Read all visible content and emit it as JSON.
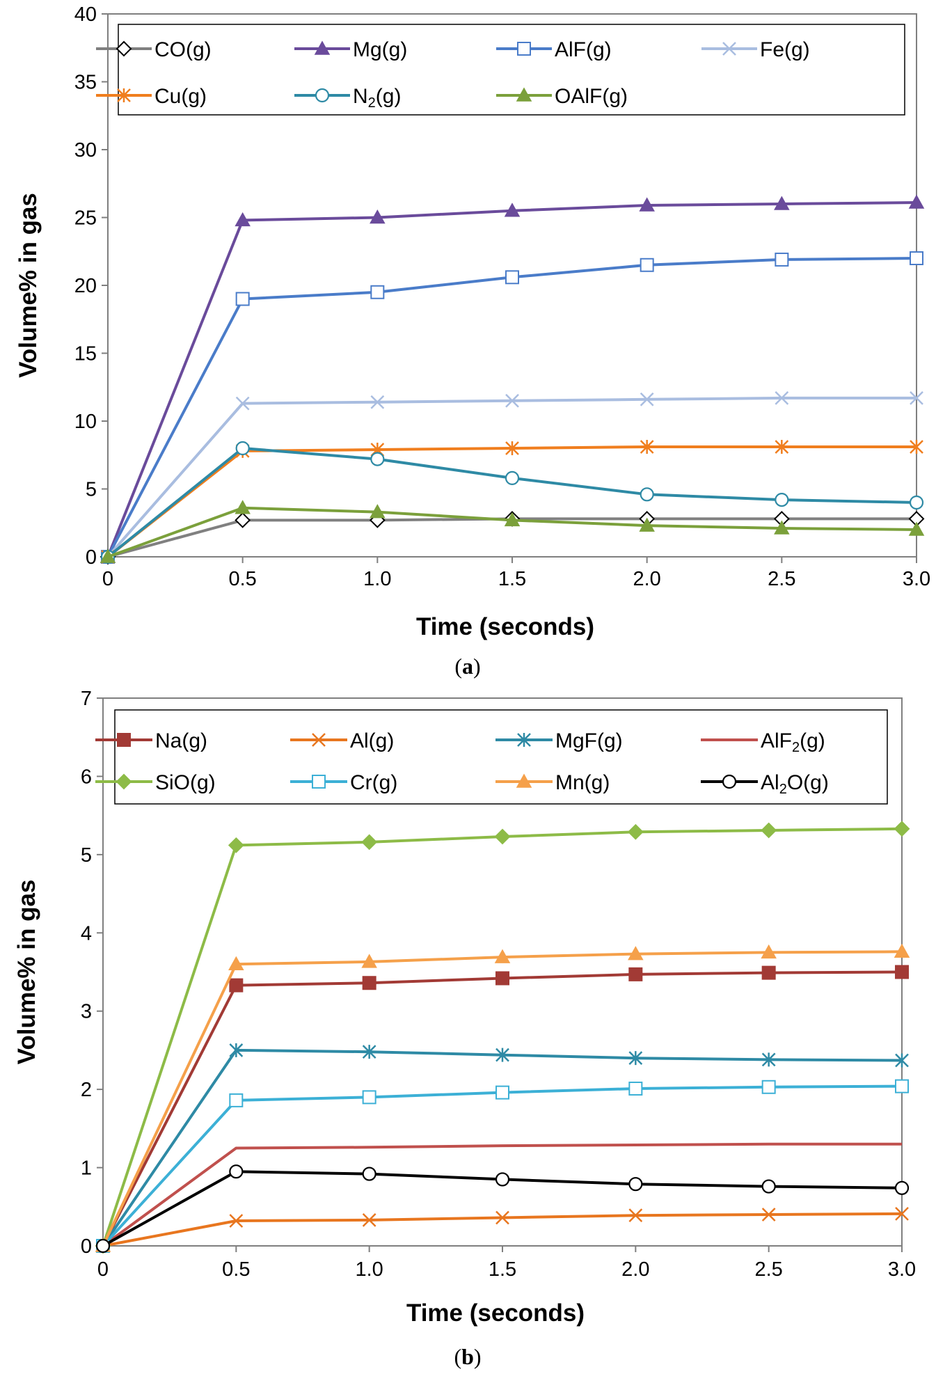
{
  "chart_data": [
    {
      "type": "line",
      "panel_label": "(a)",
      "title": "",
      "xlabel": "Time (seconds)",
      "ylabel": "Volume% in gas",
      "xlim": [
        0,
        3
      ],
      "ylim": [
        0,
        40
      ],
      "x_ticks": [
        0,
        0.5,
        1,
        1.5,
        2,
        2.5,
        3
      ],
      "x_tick_labels": [
        "0",
        "0.5",
        "1.0",
        "1.5",
        "2.0",
        "2.5",
        "3.0"
      ],
      "y_ticks": [
        0,
        5,
        10,
        15,
        20,
        25,
        30,
        35,
        40
      ],
      "y_tick_labels": [
        "0",
        "5",
        "10",
        "15",
        "20",
        "25",
        "30",
        "35",
        "40"
      ],
      "grid": false,
      "legend_position": "top",
      "x": [
        0,
        0.5,
        1,
        1.5,
        2,
        2.5,
        3
      ],
      "series": [
        {
          "name": "CO(g)",
          "label_base": "CO(g)",
          "label_sub": "",
          "label_tail": "",
          "color": "#808080",
          "marker": "diamond-open",
          "values": [
            0,
            2.7,
            2.7,
            2.8,
            2.8,
            2.8,
            2.8
          ]
        },
        {
          "name": "Mg(g)",
          "label_base": "Mg(g)",
          "label_sub": "",
          "label_tail": "",
          "color": "#6a4b9b",
          "marker": "triangle",
          "values": [
            0,
            24.8,
            25.0,
            25.5,
            25.9,
            26.0,
            26.1
          ]
        },
        {
          "name": "AlF(g)",
          "label_base": "AlF(g)",
          "label_sub": "",
          "label_tail": "",
          "color": "#4a7cc9",
          "marker": "square-open",
          "values": [
            0,
            19.0,
            19.5,
            20.6,
            21.5,
            21.9,
            22.0
          ]
        },
        {
          "name": "Fe(g)",
          "label_base": "Fe(g)",
          "label_sub": "",
          "label_tail": "",
          "color": "#a9bde0",
          "marker": "x",
          "values": [
            0,
            11.3,
            11.4,
            11.5,
            11.6,
            11.7,
            11.7
          ]
        },
        {
          "name": "Cu(g)",
          "label_base": "Cu(g)",
          "label_sub": "",
          "label_tail": "",
          "color": "#f07e1e",
          "marker": "star",
          "values": [
            0,
            7.8,
            7.9,
            8.0,
            8.1,
            8.1,
            8.1
          ]
        },
        {
          "name": "N2(g)",
          "label_base": "N",
          "label_sub": "2",
          "label_tail": "(g)",
          "color": "#2e8aa5",
          "marker": "circle-open",
          "values": [
            0,
            8.0,
            7.2,
            5.8,
            4.6,
            4.2,
            4.0
          ]
        },
        {
          "name": "OAlF(g)",
          "label_base": "OAlF(g)",
          "label_sub": "",
          "label_tail": "",
          "color": "#7ba03b",
          "marker": "triangle",
          "values": [
            0,
            3.6,
            3.3,
            2.7,
            2.3,
            2.1,
            2.0
          ]
        }
      ]
    },
    {
      "type": "line",
      "panel_label": "(b)",
      "title": "",
      "xlabel": "Time (seconds)",
      "ylabel": "Volume% in gas",
      "xlim": [
        0,
        3
      ],
      "ylim": [
        0,
        7
      ],
      "x_ticks": [
        0,
        0.5,
        1,
        1.5,
        2,
        2.5,
        3
      ],
      "x_tick_labels": [
        "0",
        "0.5",
        "1.0",
        "1.5",
        "2.0",
        "2.5",
        "3.0"
      ],
      "y_ticks": [
        0,
        1,
        2,
        3,
        4,
        5,
        6,
        7
      ],
      "y_tick_labels": [
        "0",
        "1",
        "2",
        "3",
        "4",
        "5",
        "6",
        "7"
      ],
      "grid": false,
      "legend_position": "top",
      "x": [
        0,
        0.5,
        1,
        1.5,
        2,
        2.5,
        3
      ],
      "series": [
        {
          "name": "Na(g)",
          "label_base": "Na(g)",
          "label_sub": "",
          "label_tail": "",
          "color": "#a23a35",
          "marker": "square",
          "values": [
            0,
            3.33,
            3.36,
            3.42,
            3.47,
            3.49,
            3.5
          ]
        },
        {
          "name": "Al(g)",
          "label_base": "Al(g)",
          "label_sub": "",
          "label_tail": "",
          "color": "#e8761f",
          "marker": "x",
          "values": [
            0,
            0.32,
            0.33,
            0.36,
            0.39,
            0.4,
            0.41
          ]
        },
        {
          "name": "MgF(g)",
          "label_base": "MgF(g)",
          "label_sub": "",
          "label_tail": "",
          "color": "#2e8aa5",
          "marker": "star",
          "values": [
            0,
            2.5,
            2.48,
            2.44,
            2.4,
            2.38,
            2.37
          ]
        },
        {
          "name": "AlF2(g)",
          "label_base": "AlF",
          "label_sub": "2",
          "label_tail": "(g)",
          "color": "#c0504d",
          "marker": "none",
          "values": [
            0,
            1.25,
            1.26,
            1.28,
            1.29,
            1.3,
            1.3
          ]
        },
        {
          "name": "SiO(g)",
          "label_base": "SiO(g)",
          "label_sub": "",
          "label_tail": "",
          "color": "#8dbb47",
          "marker": "diamond",
          "values": [
            0,
            5.12,
            5.16,
            5.23,
            5.29,
            5.31,
            5.33
          ]
        },
        {
          "name": "Cr(g)",
          "label_base": "Cr(g)",
          "label_sub": "",
          "label_tail": "",
          "color": "#3cb0d6",
          "marker": "square-open",
          "values": [
            0,
            1.86,
            1.9,
            1.96,
            2.01,
            2.03,
            2.04
          ]
        },
        {
          "name": "Mn(g)",
          "label_base": "Mn(g)",
          "label_sub": "",
          "label_tail": "",
          "color": "#f5a04a",
          "marker": "triangle",
          "values": [
            0,
            3.6,
            3.63,
            3.69,
            3.73,
            3.75,
            3.76
          ]
        },
        {
          "name": "Al2O(g)",
          "label_base": "Al",
          "label_sub": "2",
          "label_tail": "O(g)",
          "color": "#000000",
          "marker": "circle-open",
          "values": [
            0,
            0.95,
            0.92,
            0.85,
            0.79,
            0.76,
            0.74
          ]
        }
      ]
    }
  ]
}
